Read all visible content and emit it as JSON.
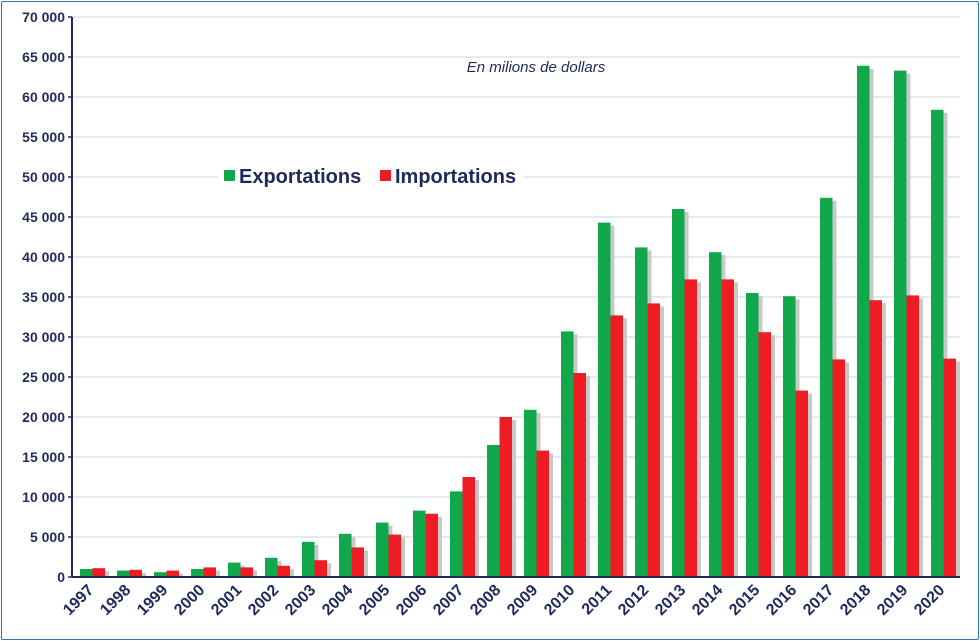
{
  "chart_data": {
    "type": "bar",
    "title": "",
    "annotation": "En milions de dollars",
    "xlabel": "",
    "ylabel": "",
    "ylim": [
      0,
      70000
    ],
    "yticks": [
      0,
      5000,
      10000,
      15000,
      20000,
      25000,
      30000,
      35000,
      40000,
      45000,
      50000,
      55000,
      60000,
      65000,
      70000
    ],
    "ytick_labels": [
      "0",
      "5 000",
      "10 000",
      "15 000",
      "20 000",
      "25 000",
      "30 000",
      "35 000",
      "40 000",
      "45 000",
      "50 000",
      "55 000",
      "60 000",
      "65 000",
      "70 000"
    ],
    "grid": true,
    "legend_position": "upper-left",
    "categories": [
      "1997",
      "1998",
      "1999",
      "2000",
      "2001",
      "2002",
      "2003",
      "2004",
      "2005",
      "2006",
      "2007",
      "2008",
      "2009",
      "2010",
      "2011",
      "2012",
      "2013",
      "2014",
      "2015",
      "2016",
      "2017",
      "2018",
      "2019",
      "2020"
    ],
    "series": [
      {
        "name": "Exportations",
        "color": "#10a84a",
        "values": [
          1000,
          800,
          600,
          1000,
          1800,
          2400,
          4400,
          5400,
          6800,
          8300,
          10700,
          16500,
          20900,
          30700,
          44300,
          41200,
          46000,
          40600,
          35500,
          35100,
          47400,
          63900,
          63300,
          58400
        ]
      },
      {
        "name": "Importations",
        "color": "#ee1c25",
        "values": [
          1100,
          900,
          800,
          1200,
          1200,
          1400,
          2100,
          3700,
          5300,
          7900,
          12500,
          20000,
          15800,
          25500,
          32700,
          34200,
          37200,
          37200,
          30600,
          23300,
          27200,
          34600,
          35200,
          27300
        ]
      }
    ]
  }
}
